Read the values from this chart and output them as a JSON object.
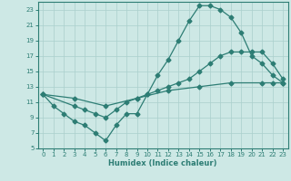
{
  "xlabel": "Humidex (Indice chaleur)",
  "bg_color": "#cde8e5",
  "line_color": "#2d7d74",
  "grid_color": "#aacfcc",
  "xlim": [
    -0.5,
    23.5
  ],
  "ylim": [
    5,
    24
  ],
  "xticks": [
    0,
    1,
    2,
    3,
    4,
    5,
    6,
    7,
    8,
    9,
    10,
    11,
    12,
    13,
    14,
    15,
    16,
    17,
    18,
    19,
    20,
    21,
    22,
    23
  ],
  "yticks": [
    5,
    7,
    9,
    11,
    13,
    15,
    17,
    19,
    21,
    23
  ],
  "curve1_x": [
    0,
    1,
    2,
    3,
    4,
    5,
    6,
    7,
    8,
    9,
    10,
    11,
    12,
    13,
    14,
    15,
    16,
    17,
    18,
    19,
    20,
    21,
    22,
    23
  ],
  "curve1_y": [
    12,
    10.5,
    9.5,
    8.5,
    8,
    7,
    6,
    8,
    9.5,
    9.5,
    12,
    14.5,
    16.5,
    19,
    21.5,
    23.5,
    23.5,
    23,
    22,
    20,
    17,
    16,
    14.5,
    13.5
  ],
  "curve2_x": [
    0,
    3,
    4,
    5,
    6,
    7,
    8,
    9,
    10,
    11,
    12,
    13,
    14,
    15,
    16,
    17,
    18,
    19,
    20,
    21,
    22,
    23
  ],
  "curve2_y": [
    12,
    10.5,
    10,
    9.5,
    9,
    10,
    11,
    11.5,
    12,
    12.5,
    13,
    13.5,
    14,
    15,
    16,
    17,
    17.5,
    17.5,
    17.5,
    17.5,
    16,
    14
  ],
  "curve3_x": [
    0,
    3,
    6,
    9,
    12,
    15,
    18,
    21,
    22,
    23
  ],
  "curve3_y": [
    12,
    11.5,
    10.5,
    11.5,
    12.5,
    13,
    13.5,
    13.5,
    13.5,
    13.5
  ]
}
